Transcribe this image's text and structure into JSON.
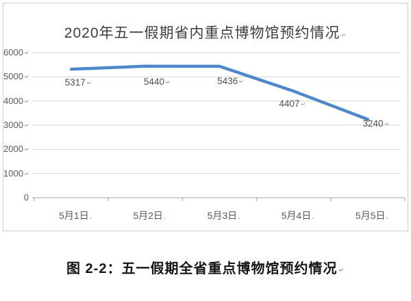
{
  "chart_data": {
    "type": "line",
    "title": "2020年五一假期省内重点博物馆预约情况",
    "categories": [
      "5月1日",
      "5月2日",
      "5月3日",
      "5月4日",
      "5月5日"
    ],
    "values": [
      5317,
      5440,
      5436,
      4407,
      3240
    ],
    "data_labels": [
      "5317",
      "5440",
      "5436",
      "4407",
      "3240"
    ],
    "ylim": [
      0,
      6000
    ],
    "ytick_interval": 1000,
    "yticks": [
      "6000",
      "5000",
      "4000",
      "3000",
      "2000",
      "1000",
      "0"
    ],
    "grid": true,
    "legend": "none",
    "xlabel": "",
    "ylabel": ""
  },
  "caption": {
    "text": "图 2-2：五一假期全省重点博物馆预约情况"
  },
  "marks": {
    "paragraph": "↵",
    "date": "."
  },
  "colors": {
    "line": "#4e87ca",
    "gridline": "#d9d9d9",
    "axis": "#b3b3b3",
    "tick_label": "#595959",
    "data_label": "#4f4f4f",
    "title": "#3d3d3d",
    "caption": "#161616",
    "frame_border": "#cfcfcf"
  }
}
